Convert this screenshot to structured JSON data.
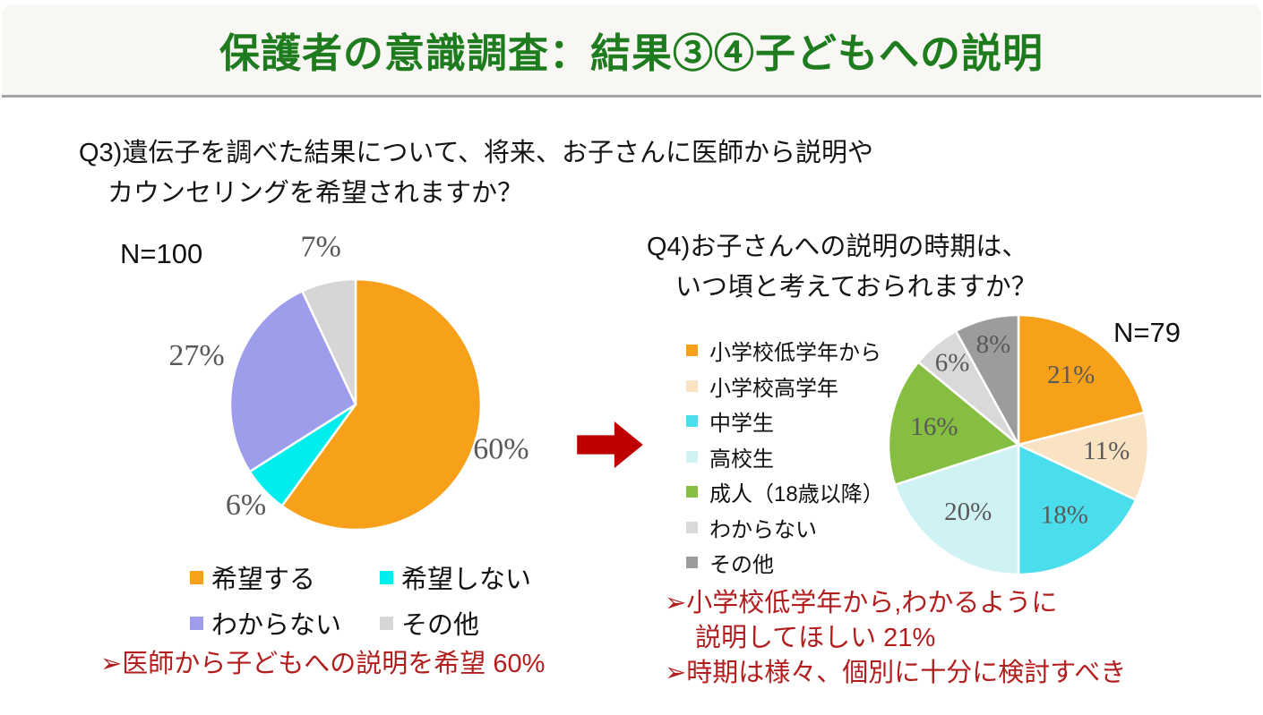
{
  "title": "保護者の意識調査：結果③④子どもへの説明",
  "colors": {
    "title_green": "#1e7b1e",
    "note_red": "#b21e1e",
    "arrow_red": "#c00000",
    "percent_label_gray": "#595959",
    "header_band": "#f8f7f4"
  },
  "q3": {
    "question_lines": [
      "Q3)遺伝子を調べた結果について、将来、お子さんに医師から説明や",
      "カウンセリングを希望されますか？"
    ],
    "n_label": "N=100",
    "note_lines": [
      "➢医師から子どもへの説明を希望 60%"
    ]
  },
  "q4": {
    "question_lines": [
      "Q4)お子さんへの説明の時期は、",
      "いつ頃と考えておられますか？"
    ],
    "n_label": "N=79",
    "note_lines": [
      "➢小学校低学年から,わかるように",
      "説明してほしい 21%",
      "➢時期は様々、個別に十分に検討すべき"
    ]
  },
  "chart_data": [
    {
      "type": "pie",
      "id": "q3",
      "title": "Q3)遺伝子を調べた結果について、将来、お子さんに医師から説明やカウンセリングを希望されますか？",
      "n": 100,
      "categories": [
        "希望する",
        "希望しない",
        "わからない",
        "その他"
      ],
      "values": [
        60,
        6,
        27,
        7
      ],
      "unit": "%",
      "start_angle_deg": 0,
      "direction": "clockwise",
      "colors": [
        "#f7a11a",
        "#00eded",
        "#9d9deb",
        "#d6d6d6"
      ],
      "legend_position": "bottom",
      "labels_outside": true
    },
    {
      "type": "pie",
      "id": "q4",
      "title": "Q4)お子さんへの説明の時期は、いつ頃と考えておられますか？",
      "n": 79,
      "categories": [
        "小学校低学年から",
        "小学校高学年",
        "中学生",
        "高校生",
        "成人（18歳以降）",
        "わからない",
        "その他"
      ],
      "values": [
        21,
        11,
        18,
        20,
        16,
        6,
        8
      ],
      "unit": "%",
      "start_angle_deg": 0,
      "direction": "clockwise",
      "colors": [
        "#f7a11a",
        "#f9e3c2",
        "#4addec",
        "#cff2f5",
        "#85be41",
        "#d9d9d9",
        "#9c9c9c"
      ],
      "legend_position": "left",
      "labels_outside": false
    }
  ]
}
